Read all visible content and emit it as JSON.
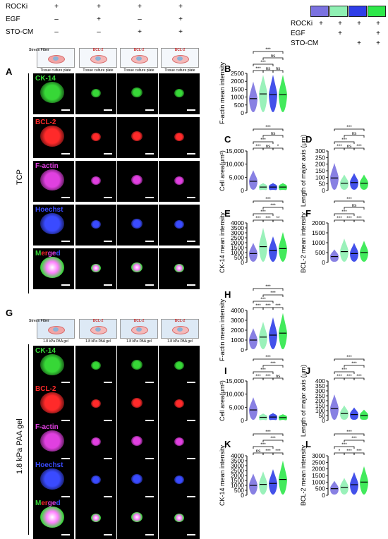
{
  "conditions": {
    "labels": [
      "ROCKi",
      "EGF",
      "STO-CM"
    ],
    "signs": [
      [
        "+",
        "+",
        "+",
        "+"
      ],
      [
        "–",
        "+",
        "–",
        "+"
      ],
      [
        "–",
        "–",
        "+",
        "+"
      ]
    ]
  },
  "legend": {
    "colors": [
      "#7b72e0",
      "#8ff0b3",
      "#2f3ee8",
      "#2ee84a"
    ],
    "labels": [
      "ROCKi",
      "EGF",
      "STO-CM"
    ],
    "signs": [
      [
        "+",
        "+",
        "+",
        "+"
      ],
      [
        "",
        "+",
        "",
        "+"
      ],
      [
        "",
        "",
        "+",
        "+"
      ]
    ]
  },
  "schematic_top": {
    "first_title": "Stress Fiber",
    "titles": [
      "BCL-2",
      "BCL-2",
      "BCL-2"
    ],
    "substrate": "Tissue culture plate"
  },
  "schematic_bottom": {
    "first_title": "Stress Fiber",
    "titles": [
      "BCL-2",
      "BCL-2",
      "BCL-2"
    ],
    "substrate": "1.8 kPa PAA gel"
  },
  "panel_letters": [
    "A",
    "B",
    "C",
    "D",
    "E",
    "F",
    "G",
    "H",
    "I",
    "J",
    "K",
    "L"
  ],
  "row_group_labels": {
    "top": "TCP",
    "bottom": "1.8 kPa PAA gel"
  },
  "stains": [
    {
      "name": "CK-14",
      "color": "#37d737"
    },
    {
      "name": "BCL-2",
      "color": "#ff2a2a"
    },
    {
      "name": "F-actin",
      "color": "#e040e0"
    },
    {
      "name": "Hoechst",
      "color": "#3a4bff"
    },
    {
      "name": "Merged",
      "color": "multi"
    }
  ],
  "merged_parts": [
    {
      "text": "M",
      "color": "#37d737"
    },
    {
      "text": "er",
      "color": "#ff2a2a"
    },
    {
      "text": "ge",
      "color": "#e040e0"
    },
    {
      "text": "d",
      "color": "#3a4bff"
    }
  ],
  "chart_data": [
    {
      "panel": "B",
      "type": "violin",
      "ylabel": "F-actin  mean intensity",
      "yticks": [
        0,
        500,
        1000,
        1500,
        2000,
        2500
      ],
      "ylim": [
        0,
        2500
      ],
      "medians": [
        900,
        1200,
        1150,
        1150
      ],
      "brackets": [
        [
          "0-1",
          "***"
        ],
        [
          "1-2",
          "ns"
        ],
        [
          "2-3",
          "ns"
        ],
        [
          "0-2",
          "***"
        ],
        [
          "1-3",
          "ns"
        ],
        [
          "0-3",
          "***"
        ]
      ]
    },
    {
      "panel": "C",
      "type": "violin",
      "ylabel": "Cell area(μm²)",
      "yticks": [
        0,
        5000,
        10000,
        15000
      ],
      "ytick_labels": [
        "0",
        "5,000",
        "10,000",
        "15,000"
      ],
      "ylim": [
        0,
        15000
      ],
      "medians": [
        3500,
        1300,
        1300,
        1300
      ],
      "brackets": [
        [
          "0-1",
          "***"
        ],
        [
          "1-2",
          "ns"
        ],
        [
          "2-3",
          "*"
        ],
        [
          "0-2",
          "***"
        ],
        [
          "1-3",
          "ns"
        ],
        [
          "0-3",
          "***"
        ]
      ]
    },
    {
      "panel": "D",
      "type": "violin",
      "ylabel": "Length of major axis (μm)",
      "yticks": [
        0,
        50,
        100,
        150,
        200,
        250,
        300
      ],
      "ylim": [
        0,
        300
      ],
      "medians": [
        95,
        55,
        60,
        55
      ],
      "brackets": [
        [
          "0-1",
          "***"
        ],
        [
          "1-2",
          "ns"
        ],
        [
          "2-3",
          "***"
        ],
        [
          "0-2",
          "***"
        ],
        [
          "1-3",
          "ns"
        ],
        [
          "0-3",
          "***"
        ]
      ]
    },
    {
      "panel": "E",
      "type": "violin",
      "ylabel": "CK-14 mean intensity",
      "yticks": [
        0,
        500,
        1000,
        1500,
        2000,
        2500,
        3000,
        3500,
        4000
      ],
      "ylim": [
        0,
        4000
      ],
      "medians": [
        900,
        1600,
        1200,
        1400
      ],
      "brackets": [
        [
          "0-1",
          "***"
        ],
        [
          "2-3",
          "**"
        ],
        [
          "1-2",
          "***"
        ],
        [
          "0-2",
          "***"
        ],
        [
          "1-3",
          "***"
        ],
        [
          "0-3",
          "***"
        ]
      ]
    },
    {
      "panel": "F",
      "type": "violin",
      "ylabel": "BCL-2  mean intensity",
      "yticks": [
        0,
        500,
        1000,
        1500,
        2000
      ],
      "ylim": [
        0,
        2000
      ],
      "medians": [
        300,
        550,
        450,
        500
      ],
      "brackets": [
        [
          "0-1",
          "***"
        ],
        [
          "2-3",
          "***"
        ],
        [
          "1-2",
          "***"
        ],
        [
          "0-2",
          "***"
        ],
        [
          "1-3",
          "ns"
        ],
        [
          "0-3",
          "***"
        ]
      ]
    },
    {
      "panel": "H",
      "type": "violin",
      "ylabel": "F-actin mean intensity",
      "yticks": [
        0,
        1000,
        2000,
        3000,
        4000
      ],
      "ylim": [
        0,
        4000
      ],
      "medians": [
        1000,
        1300,
        1500,
        1700
      ],
      "brackets": [
        [
          "0-1",
          "***"
        ],
        [
          "2-3",
          "***"
        ],
        [
          "1-2",
          "***"
        ],
        [
          "0-2",
          "***"
        ],
        [
          "1-3",
          "***"
        ],
        [
          "0-3",
          "***"
        ]
      ]
    },
    {
      "panel": "I",
      "type": "violin",
      "ylabel": "Cell area(μm²)",
      "yticks": [
        0,
        5000,
        10000,
        15000
      ],
      "ytick_labels": [
        "0",
        "5,000",
        "10,000",
        "15,000"
      ],
      "ylim": [
        0,
        15000
      ],
      "medians": [
        4000,
        1200,
        1300,
        1100
      ],
      "brackets": [
        [
          "0-1",
          "***"
        ],
        [
          "2-3",
          "ns"
        ],
        [
          "1-2",
          "***"
        ],
        [
          "0-2",
          "***"
        ],
        [
          "1-3",
          "***"
        ],
        [
          "0-3",
          "***"
        ]
      ]
    },
    {
      "panel": "J",
      "type": "violin",
      "ylabel": "Length of major axis (μm)",
      "yticks": [
        0,
        50,
        100,
        150,
        200,
        250,
        300,
        350,
        400
      ],
      "ylim": [
        0,
        400
      ],
      "medians": [
        120,
        70,
        60,
        50
      ],
      "brackets": [
        [
          "0-1",
          "***"
        ],
        [
          "2-3",
          "***"
        ],
        [
          "1-2",
          "***"
        ],
        [
          "0-2",
          "***"
        ],
        [
          "1-3",
          "***"
        ],
        [
          "0-3",
          "***"
        ]
      ]
    },
    {
      "panel": "K",
      "type": "violin",
      "ylabel": "CK-14 mean intensity",
      "yticks": [
        0,
        500,
        1000,
        1500,
        2000,
        2500,
        3000,
        3500,
        4000
      ],
      "ylim": [
        0,
        4000
      ],
      "medians": [
        1000,
        1100,
        1200,
        1600
      ],
      "brackets": [
        [
          "0-1",
          "ns"
        ],
        [
          "1-2",
          "***"
        ],
        [
          "2-3",
          "***"
        ],
        [
          "0-2",
          "***"
        ],
        [
          "1-3",
          "***"
        ],
        [
          "0-3",
          "***"
        ]
      ]
    },
    {
      "panel": "L",
      "type": "violin",
      "ylabel": "BCL-2 mean intensity",
      "yticks": [
        0,
        500,
        1000,
        1500,
        2000,
        2500,
        3000
      ],
      "ylim": [
        0,
        3000
      ],
      "medians": [
        500,
        600,
        800,
        1000
      ],
      "brackets": [
        [
          "0-1",
          "*"
        ],
        [
          "1-2",
          "***"
        ],
        [
          "2-3",
          "***"
        ],
        [
          "0-2",
          "***"
        ],
        [
          "1-3",
          "***"
        ],
        [
          "0-3",
          "***"
        ]
      ]
    }
  ]
}
